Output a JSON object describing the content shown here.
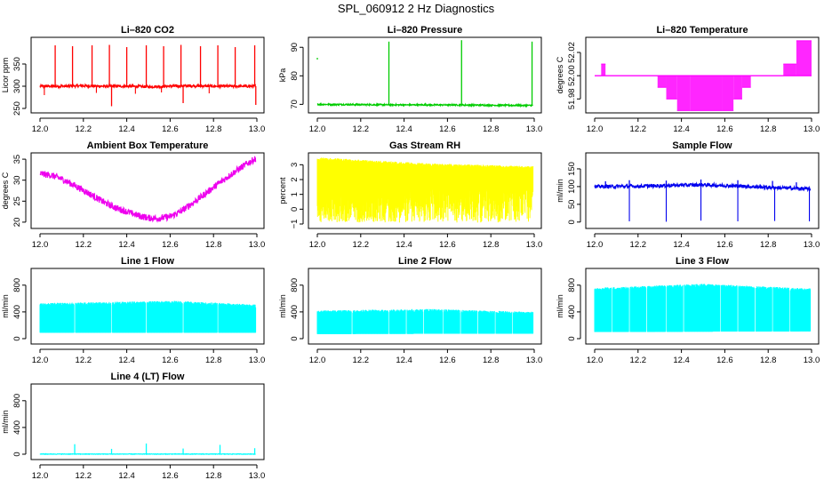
{
  "page_title": "SPL_060912  2 Hz Diagnostics",
  "chart_data": [
    {
      "type": "line",
      "id": "co2",
      "title": "Li–820 CO2",
      "xlabel": "",
      "ylabel": "Licor ppm",
      "color": "#ff0000",
      "xlim": [
        12.0,
        13.0
      ],
      "ylim": [
        240,
        410
      ],
      "xticks": [
        "12.0",
        "12.2",
        "12.4",
        "12.6",
        "12.8",
        "13.0"
      ],
      "yticks": [
        {
          "v": 250,
          "label": "250"
        },
        {
          "v": 300,
          "label": "300"
        },
        {
          "v": 350,
          "label": "350"
        }
      ],
      "series": [
        {
          "name": "CO2",
          "baseline": 300,
          "noise": 3,
          "x": [
            12.0,
            12.1,
            12.2,
            12.3,
            12.4,
            12.5,
            12.6,
            12.7,
            12.8,
            12.9,
            12.99
          ],
          "y": [
            300,
            300,
            301,
            300,
            300,
            299,
            300,
            301,
            300,
            300,
            300
          ]
        }
      ],
      "spikes": [
        {
          "x": 12.07,
          "y": 392
        },
        {
          "x": 12.15,
          "y": 390
        },
        {
          "x": 12.24,
          "y": 392
        },
        {
          "x": 12.32,
          "y": 393
        },
        {
          "x": 12.33,
          "y": 255
        },
        {
          "x": 12.4,
          "y": 388
        },
        {
          "x": 12.49,
          "y": 392
        },
        {
          "x": 12.57,
          "y": 390
        },
        {
          "x": 12.65,
          "y": 393
        },
        {
          "x": 12.66,
          "y": 262
        },
        {
          "x": 12.74,
          "y": 390
        },
        {
          "x": 12.82,
          "y": 392
        },
        {
          "x": 12.9,
          "y": 388
        },
        {
          "x": 12.99,
          "y": 392
        },
        {
          "x": 12.995,
          "y": 258
        }
      ],
      "dips": [
        {
          "x": 12.02,
          "y": 280
        },
        {
          "x": 12.26,
          "y": 285
        },
        {
          "x": 12.44,
          "y": 283
        },
        {
          "x": 12.56,
          "y": 286
        },
        {
          "x": 12.78,
          "y": 284
        }
      ]
    },
    {
      "type": "line",
      "id": "pressure",
      "title": "Li–820 Pressure",
      "xlabel": "",
      "ylabel": "kPa",
      "color": "#00cc00",
      "xlim": [
        12.0,
        13.0
      ],
      "ylim": [
        67,
        93.5
      ],
      "xticks": [
        "12.0",
        "12.2",
        "12.4",
        "12.6",
        "12.8",
        "13.0"
      ],
      "yticks": [
        {
          "v": 70,
          "label": "70"
        },
        {
          "v": 80,
          "label": "80"
        },
        {
          "v": 90,
          "label": "90"
        }
      ],
      "series": [
        {
          "name": "Pressure",
          "baseline": 69.8,
          "noise": 0.25,
          "x": [
            12.0,
            12.2,
            12.4,
            12.6,
            12.8,
            13.0
          ],
          "y": [
            70,
            69.9,
            69.8,
            69.8,
            69.7,
            69.6
          ]
        }
      ],
      "spikes": [
        {
          "x": 12.33,
          "y": 92
        },
        {
          "x": 12.665,
          "y": 92.5
        },
        {
          "x": 12.99,
          "y": 92
        }
      ],
      "dots": [
        {
          "x": 12.0,
          "y": 86
        }
      ]
    },
    {
      "type": "step",
      "id": "temperature",
      "title": "Li–820 Temperature",
      "xlabel": "",
      "ylabel": "degrees C",
      "color": "#ff00ff",
      "xlim": [
        12.0,
        13.0
      ],
      "ylim": [
        51.968,
        52.033
      ],
      "xticks": [
        "12.0",
        "12.2",
        "12.4",
        "12.6",
        "12.8",
        "13.0"
      ],
      "yticks": [
        {
          "v": 51.98,
          "label": "51.98"
        },
        {
          "v": 52.0,
          "label": "52.00"
        },
        {
          "v": 52.02,
          "label": "52.02"
        }
      ],
      "levels": [
        51.98,
        51.99,
        52.0,
        52.01,
        52.02,
        52.03
      ],
      "baseline": 52.0,
      "segments": [
        {
          "from": 12.0,
          "to": 12.03,
          "low": 52.0,
          "high": 52.0
        },
        {
          "from": 12.03,
          "to": 12.05,
          "low": 52.0,
          "high": 52.01
        },
        {
          "from": 12.05,
          "to": 12.29,
          "low": 52.0,
          "high": 52.0
        },
        {
          "from": 12.29,
          "to": 12.33,
          "low": 51.99,
          "high": 52.0
        },
        {
          "from": 12.33,
          "to": 12.38,
          "low": 51.98,
          "high": 52.0
        },
        {
          "from": 12.38,
          "to": 12.44,
          "low": 51.97,
          "high": 52.0
        },
        {
          "from": 12.44,
          "to": 12.59,
          "low": 51.97,
          "high": 52.0
        },
        {
          "from": 12.59,
          "to": 12.64,
          "low": 51.97,
          "high": 52.0
        },
        {
          "from": 12.64,
          "to": 12.68,
          "low": 51.98,
          "high": 52.0
        },
        {
          "from": 12.68,
          "to": 12.72,
          "low": 51.99,
          "high": 52.0
        },
        {
          "from": 12.72,
          "to": 12.87,
          "low": 52.0,
          "high": 52.0
        },
        {
          "from": 12.87,
          "to": 12.93,
          "low": 52.0,
          "high": 52.01
        },
        {
          "from": 12.93,
          "to": 13.0,
          "low": 52.0,
          "high": 52.03
        }
      ]
    },
    {
      "type": "line",
      "id": "ambient",
      "title": "Ambient Box Temperature",
      "xlabel": "",
      "ylabel": "degrees C",
      "color": "#ee00ee",
      "xlim": [
        12.0,
        13.0
      ],
      "ylim": [
        18.5,
        36.5
      ],
      "xticks": [
        "12.0",
        "12.2",
        "12.4",
        "12.6",
        "12.8",
        "13.0"
      ],
      "yticks": [
        {
          "v": 20,
          "label": "20"
        },
        {
          "v": 25,
          "label": "25"
        },
        {
          "v": 30,
          "label": "30"
        },
        {
          "v": 35,
          "label": "35"
        }
      ],
      "series": [
        {
          "name": "Ambient",
          "baseline": null,
          "noise": 0.8,
          "x": [
            12.0,
            12.05,
            12.1,
            12.15,
            12.2,
            12.25,
            12.3,
            12.35,
            12.4,
            12.45,
            12.5,
            12.55,
            12.6,
            12.65,
            12.7,
            12.75,
            12.8,
            12.85,
            12.9,
            12.95,
            13.0
          ],
          "y": [
            31.5,
            31.2,
            30.3,
            29.0,
            27.6,
            26.1,
            24.6,
            23.4,
            22.5,
            21.6,
            21.0,
            20.9,
            21.3,
            22.6,
            24.4,
            26.3,
            28.3,
            30.2,
            32.1,
            33.8,
            35.3
          ]
        }
      ]
    },
    {
      "type": "band",
      "id": "rh",
      "title": "Gas Stream RH",
      "xlabel": "",
      "ylabel": "percent",
      "color": "#ffff00",
      "xlim": [
        12.0,
        13.0
      ],
      "ylim": [
        -1.3,
        3.8
      ],
      "xticks": [
        "12.0",
        "12.2",
        "12.4",
        "12.6",
        "12.8",
        "13.0"
      ],
      "yticks": [
        {
          "v": -1,
          "label": "−1"
        },
        {
          "v": 0,
          "label": "0"
        },
        {
          "v": 1,
          "label": "1"
        },
        {
          "v": 2,
          "label": "2"
        },
        {
          "v": 3,
          "label": "3"
        }
      ],
      "upper": {
        "x": [
          12.0,
          12.25,
          12.5,
          12.75,
          13.0
        ],
        "y": [
          3.5,
          3.3,
          3.1,
          3.0,
          2.9
        ]
      },
      "lower": {
        "x": [
          12.0,
          12.25,
          12.5,
          12.75,
          13.0
        ],
        "y": [
          1.0,
          1.2,
          1.4,
          1.5,
          1.6
        ]
      },
      "min": -0.9
    },
    {
      "type": "line",
      "id": "sampleflow",
      "title": "Sample Flow",
      "xlabel": "",
      "ylabel": "ml/min",
      "color": "#0000ee",
      "xlim": [
        12.0,
        13.0
      ],
      "ylim": [
        -18,
        195
      ],
      "xticks": [
        "12.0",
        "12.2",
        "12.4",
        "12.6",
        "12.8",
        "13.0"
      ],
      "yticks": [
        {
          "v": 0,
          "label": "0"
        },
        {
          "v": 50,
          "label": "50"
        },
        {
          "v": 100,
          "label": "100"
        },
        {
          "v": 150,
          "label": "150"
        }
      ],
      "series": [
        {
          "name": "Sample Flow",
          "baseline": null,
          "noise": 5,
          "x": [
            12.0,
            12.2,
            12.4,
            12.5,
            12.6,
            12.8,
            13.0
          ],
          "y": [
            100,
            101,
            104,
            105,
            103,
            98,
            93
          ]
        }
      ],
      "spikes": [
        {
          "x": 12.05,
          "y": 115
        },
        {
          "x": 12.16,
          "y": 118
        },
        {
          "x": 12.33,
          "y": 117
        },
        {
          "x": 12.49,
          "y": 120
        },
        {
          "x": 12.66,
          "y": 118
        },
        {
          "x": 12.82,
          "y": 116
        },
        {
          "x": 12.93,
          "y": 112
        }
      ],
      "dips": [
        {
          "x": 12.16,
          "y": 2
        },
        {
          "x": 12.33,
          "y": 1
        },
        {
          "x": 12.49,
          "y": 4
        },
        {
          "x": 12.66,
          "y": 2
        },
        {
          "x": 12.83,
          "y": 3
        },
        {
          "x": 12.99,
          "y": 2
        }
      ]
    },
    {
      "type": "band",
      "id": "line1",
      "title": "Line 1 Flow",
      "xlabel": "",
      "ylabel": "ml/min",
      "color": "#00ffff",
      "xlim": [
        12.0,
        13.0
      ],
      "ylim": [
        -80,
        1050
      ],
      "xticks": [
        "12.0",
        "12.2",
        "12.4",
        "12.6",
        "12.8",
        "13.0"
      ],
      "yticks": [
        {
          "v": 0,
          "label": "0"
        },
        {
          "v": 400,
          "label": "400"
        },
        {
          "v": 800,
          "label": "800"
        }
      ],
      "upper": {
        "x": [
          12.0,
          12.5,
          12.62,
          13.0
        ],
        "y": [
          530,
          560,
          565,
          510
        ]
      },
      "lower": {
        "x": [
          12.0,
          13.0
        ],
        "y": [
          90,
          90
        ]
      },
      "gaps": [
        12.16,
        12.33,
        12.49,
        12.66,
        12.82
      ]
    },
    {
      "type": "band",
      "id": "line2",
      "title": "Line 2 Flow",
      "xlabel": "",
      "ylabel": "ml/min",
      "color": "#00ffff",
      "xlim": [
        12.0,
        13.0
      ],
      "ylim": [
        -80,
        1050
      ],
      "xticks": [
        "12.0",
        "12.2",
        "12.4",
        "12.6",
        "12.8",
        "13.0"
      ],
      "yticks": [
        {
          "v": 0,
          "label": "0"
        },
        {
          "v": 400,
          "label": "400"
        },
        {
          "v": 800,
          "label": "800"
        }
      ],
      "upper": {
        "x": [
          12.0,
          12.5,
          13.0
        ],
        "y": [
          420,
          445,
          400
        ]
      },
      "lower": {
        "x": [
          12.0,
          13.0
        ],
        "y": [
          70,
          75
        ]
      },
      "gaps": [
        12.16,
        12.33,
        12.41,
        12.49,
        12.58,
        12.66,
        12.74,
        12.82,
        12.9
      ]
    },
    {
      "type": "band",
      "id": "line3",
      "title": "Line 3 Flow",
      "xlabel": "",
      "ylabel": "ml/min",
      "color": "#00ffff",
      "xlim": [
        12.0,
        13.0
      ],
      "ylim": [
        -80,
        1050
      ],
      "xticks": [
        "12.0",
        "12.2",
        "12.4",
        "12.6",
        "12.8",
        "13.0"
      ],
      "yticks": [
        {
          "v": 0,
          "label": "0"
        },
        {
          "v": 400,
          "label": "400"
        },
        {
          "v": 800,
          "label": "800"
        }
      ],
      "upper": {
        "x": [
          12.0,
          12.5,
          13.0
        ],
        "y": [
          760,
          820,
          750
        ]
      },
      "lower": {
        "x": [
          12.0,
          13.0
        ],
        "y": [
          100,
          110
        ]
      },
      "gaps": [
        12.08,
        12.16,
        12.24,
        12.33,
        12.41,
        12.58,
        12.66,
        12.74,
        12.82,
        12.9
      ]
    },
    {
      "type": "line",
      "id": "line4",
      "title": "Line 4 (LT) Flow",
      "xlabel": "",
      "ylabel": "ml/min",
      "color": "#00ffff",
      "xlim": [
        12.0,
        13.0
      ],
      "ylim": [
        -80,
        1050
      ],
      "xticks": [
        "12.0",
        "12.2",
        "12.4",
        "12.6",
        "12.8",
        "13.0"
      ],
      "yticks": [
        {
          "v": 0,
          "label": "0"
        },
        {
          "v": 400,
          "label": "400"
        },
        {
          "v": 800,
          "label": "800"
        }
      ],
      "series": [
        {
          "name": "Line 4 Flow",
          "baseline": 0,
          "noise": 4,
          "x": [
            12.0,
            13.0
          ],
          "y": [
            2,
            2
          ]
        }
      ],
      "spikes": [
        {
          "x": 12.16,
          "y": 150
        },
        {
          "x": 12.33,
          "y": 80
        },
        {
          "x": 12.49,
          "y": 160
        },
        {
          "x": 12.66,
          "y": 85
        },
        {
          "x": 12.83,
          "y": 140
        },
        {
          "x": 12.99,
          "y": 90
        }
      ]
    }
  ]
}
